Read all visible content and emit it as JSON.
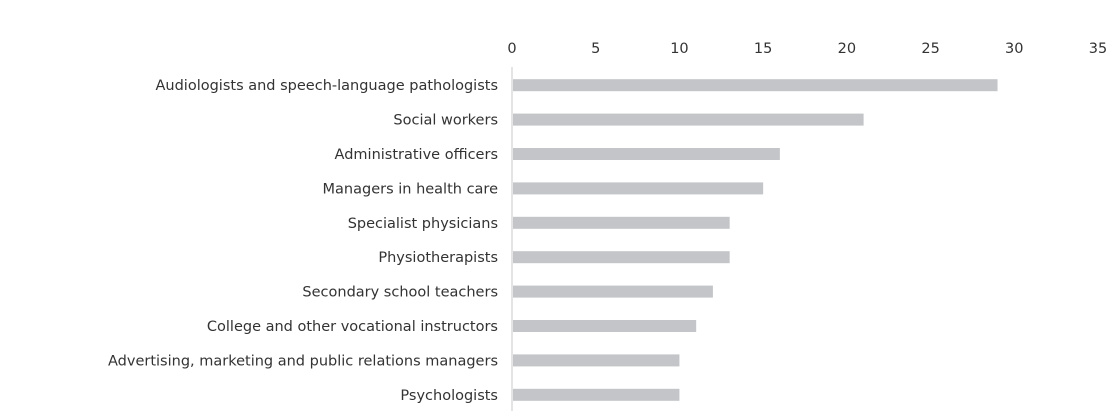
{
  "chart_data": {
    "type": "bar",
    "orientation": "horizontal",
    "title": "",
    "xlabel": "",
    "ylabel": "",
    "xlim": [
      0,
      35
    ],
    "x_ticks": [
      0,
      5,
      10,
      15,
      20,
      25,
      30,
      35
    ],
    "x_axis_position": "top",
    "grid": false,
    "legend": "none",
    "bar_color": "#c3c5c8",
    "categories": [
      "Audiologists and speech-language pathologists",
      "Social workers",
      "Administrative officers",
      "Managers in health care",
      "Specialist physicians",
      "Physiotherapists",
      "Secondary school teachers",
      "College and other vocational instructors",
      "Advertising, marketing and public relations managers",
      "Psychologists"
    ],
    "values": [
      29,
      21,
      16,
      15,
      13,
      13,
      12,
      11,
      10,
      10
    ]
  }
}
